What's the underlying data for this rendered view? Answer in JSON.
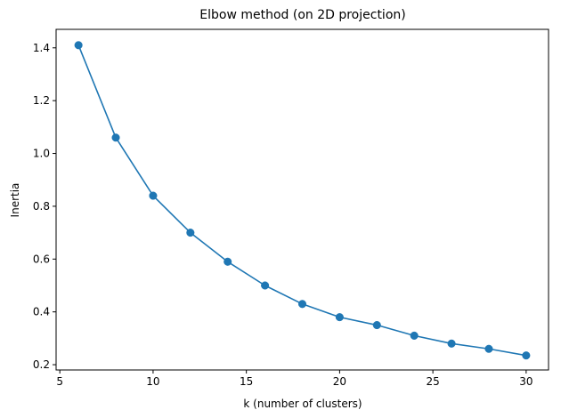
{
  "chart_data": {
    "type": "line",
    "title": "Elbow method (on 2D projection)",
    "xlabel": "k (number of clusters)",
    "ylabel": "Inertia",
    "x": [
      6,
      8,
      10,
      12,
      14,
      16,
      18,
      20,
      22,
      24,
      26,
      28,
      30
    ],
    "series": [
      {
        "values": [
          1.41,
          1.06,
          0.84,
          0.7,
          0.59,
          0.5,
          0.43,
          0.38,
          0.35,
          0.31,
          0.28,
          0.26,
          0.235
        ],
        "color": "#1f77b4",
        "marker": "circle"
      }
    ],
    "xlim": [
      4.8,
      31.2
    ],
    "ylim": [
      0.18,
      1.47
    ],
    "xticks": [
      5,
      10,
      15,
      20,
      25,
      30
    ],
    "xtick_labels": [
      "5",
      "10",
      "15",
      "20",
      "25",
      "30"
    ],
    "yticks": [
      0.2,
      0.4,
      0.6,
      0.8,
      1.0,
      1.2,
      1.4
    ],
    "ytick_labels": [
      "0.2",
      "0.4",
      "0.6",
      "0.8",
      "1.0",
      "1.2",
      "1.4"
    ],
    "grid": false,
    "legend": false
  }
}
